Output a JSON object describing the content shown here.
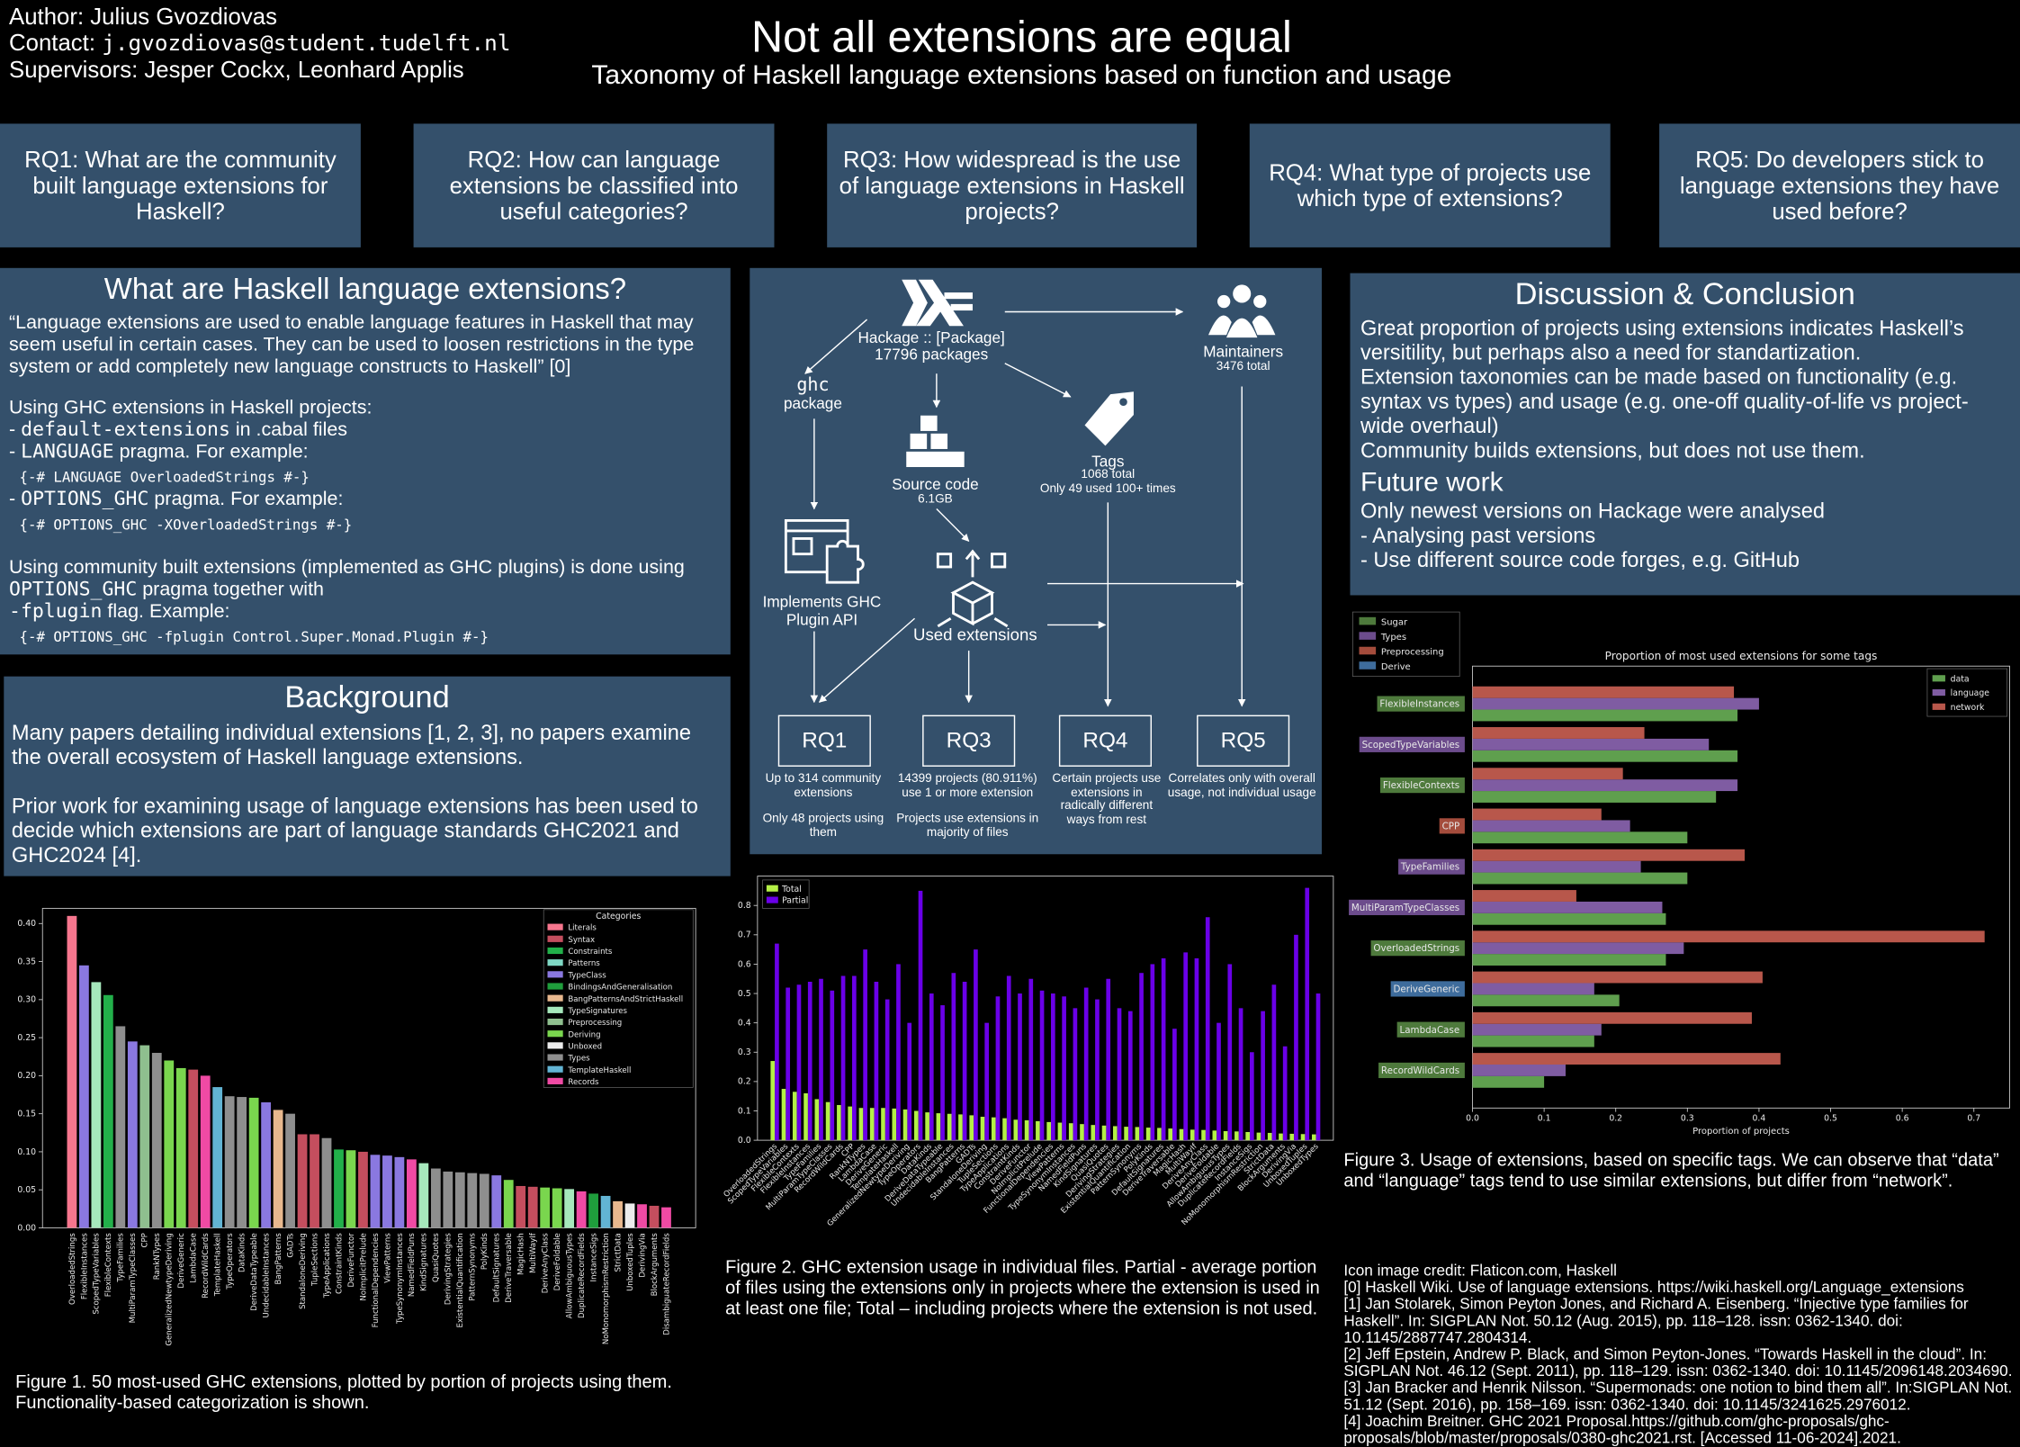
{
  "header": {
    "author": "Author: Julius Gvozdiovas",
    "contact_label": "Contact:",
    "contact": "j.gvozdiovas@student.tudelft.nl",
    "supervisors": "Supervisors: Jesper Cockx,  Leonhard Applis",
    "title": "Not all extensions are equal",
    "subtitle": "Taxonomy of Haskell language extensions based on function and usage"
  },
  "research_questions": [
    "RQ1: What are the community built language extensions for Haskell?",
    "RQ2: How can language extensions be classified into useful categories?",
    "RQ3: How widespread is the use of language extensions in Haskell projects?",
    "RQ4: What type of projects use which type of extensions?",
    "RQ5: Do developers stick to language extensions they have used before?"
  ],
  "intro": {
    "title": "What are Haskell language extensions?",
    "quote": "“Language extensions are used to enable language features in Haskell that may seem useful in certain cases. They can be used to loosen restrictions in the type system or add completely new language constructs to Haskell” [0]",
    "usage_heading": "Using GHC extensions in Haskell projects:",
    "items": [
      {
        "dash": "- ",
        "code": "default-extensions",
        "text": " in .cabal files"
      },
      {
        "dash": "- ",
        "code": "LANGUAGE",
        "text": " pragma. For example:",
        "example": "{-# LANGUAGE OverloadedStrings #-}"
      },
      {
        "dash": "- ",
        "code": "OPTIONS_GHC",
        "text": " pragma. For example:",
        "example": "{-# OPTIONS_GHC -XOverloadedStrings #-}"
      }
    ],
    "plugins": {
      "text1": "Using community built extensions (implemented as GHC plugins) is done using",
      "code1": "OPTIONS_GHC",
      "text2": " pragma together with",
      "code2": "-fplugin",
      "text3": " flag. Example:",
      "example": "{-# OPTIONS_GHC -fplugin Control.Super.Monad.Plugin #-}"
    }
  },
  "background": {
    "title": "Background",
    "paragraphs": [
      "Many papers detailing individual extensions [1, 2, 3], no papers examine the overall ecosystem of Haskell language extensions.",
      "Prior work for examining usage of language extensions has been used to decide which extensions are part of language standards GHC2021 and GHC2024 [4]."
    ]
  },
  "diagram": {
    "hackage": {
      "label": "Hackage :: [Package]",
      "sub": "17796 packages"
    },
    "maintainers": {
      "label": "Maintainers",
      "sub": "3476 total"
    },
    "ghc": {
      "label": "ghc",
      "sub": "package"
    },
    "source": {
      "label": "Source code",
      "sub": "6.1GB"
    },
    "tags": {
      "label": "Tags",
      "sub1": "1068 total",
      "sub2": "Only 49 used 100+ times"
    },
    "plugin": {
      "label": "Implements GHC Plugin API"
    },
    "used": {
      "label": "Used extensions"
    },
    "rqs": [
      {
        "label": "RQ1",
        "notes": [
          "Up to 314 community extensions",
          "Only 48 projects using them"
        ]
      },
      {
        "label": "RQ3",
        "notes": [
          "14399 projects (80.911%) use 1 or more extension",
          "Projects use extensions in majority of files"
        ]
      },
      {
        "label": "RQ4",
        "notes": [
          "Certain projects use extensions in radically different ways from rest"
        ]
      },
      {
        "label": "RQ5",
        "notes": [
          "Correlates only with overall usage, not individual usage"
        ]
      }
    ]
  },
  "discussion": {
    "title": "Discussion & Conclusion",
    "paragraphs": [
      "Great proportion of projects using extensions indicates Haskell’s versitility, but perhaps also a need for standartization.",
      "Extension taxonomies can be made based on functionality (e.g. syntax vs types) and usage (e.g. one-off quality-of-life vs project-wide overhaul)",
      "Community builds extensions, but does not use them."
    ],
    "future_title": "Future work",
    "future": [
      "Only newest versions on Hackage were analysed",
      "- Analysing past versions",
      "- Use different source code forges, e.g. GitHub"
    ]
  },
  "references": [
    "Icon image credit: Flaticon.com, Haskell",
    "[0] Haskell Wiki. Use of language extensions. https://wiki.haskell.org/Language_extensions",
    "[1] Jan Stolarek, Simon Peyton Jones, and Richard A. Eisenberg. “Injective type families for Haskell”. In: SIGPLAN Not. 50.12 (Aug. 2015), pp. 118–128. issn: 0362-1340. doi: 10.1145/2887747.2804314.",
    "[2] Jeff Epstein, Andrew P. Black, and Simon Peyton-Jones. “Towards Haskell in the cloud”. In: SIGPLAN Not. 46.12 (Sept. 2011), pp. 118–129. issn: 0362-1340. doi: 10.1145/2096148.2034690.",
    "[3] Jan Bracker and Henrik Nilsson. “Supermonads: one notion to bind them all”. In:SIGPLAN Not. 51.12 (Sept. 2016), pp. 158–169. issn: 0362-1340. doi: 10.1145/3241625.2976012.",
    "[4] Joachim Breitner. GHC 2021 Proposal.https://github.com/ghc-proposals/ghc-proposals/blob/master/proposals/0380-ghc2021.rst. [Accessed 11-06-2024].2021."
  ],
  "chart_data": [
    {
      "type": "bar",
      "caption": "Figure 1. 50 most-used GHC extensions, plotted by portion of projects using them. Functionality-based categorization is shown.",
      "categories": [
        "OverloadedStrings",
        "FlexibleInstances",
        "ScopedTypeVariables",
        "FlexibleContexts",
        "TypeFamilies",
        "MultiParamTypeClasses",
        "CPP",
        "RankNTypes",
        "GeneralizedNewtypeDeriving",
        "DeriveGeneric",
        "LambdaCase",
        "RecordWildCards",
        "TemplateHaskell",
        "TypeOperators",
        "DataKinds",
        "DeriveDataTypeable",
        "UndecidableInstances",
        "BangPatterns",
        "GADTs",
        "StandaloneDeriving",
        "TupleSections",
        "TypeApplications",
        "ConstraintKinds",
        "DeriveFunctor",
        "NoImplicitPrelude",
        "FunctionalDependencies",
        "ViewPatterns",
        "TypeSynonymInstances",
        "NamedFieldPuns",
        "KindSignatures",
        "QuasiQuotes",
        "DerivingStrategies",
        "ExistentialQuantification",
        "PatternSynonyms",
        "PolyKinds",
        "DefaultSignatures",
        "DeriveTraversable",
        "MagicHash",
        "MultiWayIf",
        "DeriveAnyClass",
        "DeriveFoldable",
        "AllowAmbiguousTypes",
        "DuplicateRecordFields",
        "InstanceSigs",
        "NoMonomorphismRestriction",
        "StrictData",
        "UnboxedTuples",
        "DerivingVia",
        "BlockArguments",
        "DisambiguateRecordFields"
      ],
      "values": [
        0.41,
        0.345,
        0.323,
        0.306,
        0.265,
        0.245,
        0.24,
        0.23,
        0.22,
        0.21,
        0.208,
        0.2,
        0.185,
        0.173,
        0.172,
        0.171,
        0.165,
        0.155,
        0.15,
        0.123,
        0.123,
        0.118,
        0.103,
        0.102,
        0.1,
        0.096,
        0.095,
        0.093,
        0.09,
        0.085,
        0.078,
        0.074,
        0.073,
        0.072,
        0.071,
        0.069,
        0.063,
        0.055,
        0.054,
        0.053,
        0.052,
        0.051,
        0.048,
        0.045,
        0.042,
        0.035,
        0.032,
        0.031,
        0.029,
        0.027
      ],
      "bar_category": [
        0,
        4,
        7,
        2,
        11,
        4,
        8,
        11,
        9,
        9,
        1,
        13,
        12,
        11,
        11,
        9,
        4,
        6,
        11,
        1,
        1,
        11,
        2,
        9,
        1,
        4,
        4,
        4,
        13,
        7,
        11,
        11,
        11,
        11,
        11,
        4,
        9,
        1,
        1,
        9,
        9,
        7,
        13,
        5,
        12,
        6,
        10,
        13,
        1,
        13
      ],
      "legend_title": "Categories",
      "legend": "upper right",
      "legend_entries": [
        {
          "name": "Literals",
          "color": "#f7768e"
        },
        {
          "name": "Syntax",
          "color": "#c44e5e"
        },
        {
          "name": "Constraints",
          "color": "#22b04a"
        },
        {
          "name": "Patterns",
          "color": "#7fd8c4"
        },
        {
          "name": "TypeClass",
          "color": "#8a78e0"
        },
        {
          "name": "BindingsAndGeneralisation",
          "color": "#1f9e3c"
        },
        {
          "name": "BangPatternsAndStrictHaskell",
          "color": "#e8b88e"
        },
        {
          "name": "TypeSignatures",
          "color": "#a6e8bc"
        },
        {
          "name": "Preprocessing",
          "color": "#8fbf8f"
        },
        {
          "name": "Deriving",
          "color": "#7ad64e"
        },
        {
          "name": "Unboxed",
          "color": "#ececec"
        },
        {
          "name": "Types",
          "color": "#8e8e8e"
        },
        {
          "name": "TemplateHaskell",
          "color": "#62b4d4"
        },
        {
          "name": "Records",
          "color": "#f04aa4"
        }
      ],
      "ylim": [
        0,
        0.42
      ],
      "yticks": [
        {
          "value": 0,
          "label": "0.00"
        },
        {
          "value": 0.05,
          "label": "0.05"
        },
        {
          "value": 0.1,
          "label": "0.10"
        },
        {
          "value": 0.15,
          "label": "0.15"
        },
        {
          "value": 0.2,
          "label": "0.20"
        },
        {
          "value": 0.25,
          "label": "0.25"
        },
        {
          "value": 0.3,
          "label": "0.30"
        },
        {
          "value": 0.35,
          "label": "0.35"
        },
        {
          "value": 0.4,
          "label": "0.40"
        }
      ]
    },
    {
      "type": "grouped-bar",
      "caption": "Figure 2. GHC extension usage in individual files. Partial - average portion of files using the extensions only in projects where the extension is used in at least one file; Total – including projects where the extension is not used.",
      "categories": [
        "OverloadedStrings",
        "ScopedTypeVariables",
        "FlexibleContexts",
        "FlexibleInstances",
        "TypeFamilies",
        "MultiParamTypeClasses",
        "RecordWildCards",
        "CPP",
        "RankNTypes",
        "LambdaCase",
        "DeriveGeneric",
        "TemplateHaskell",
        "GeneralizedNewtypeDeriving",
        "TypeOperators",
        "DataKinds",
        "DeriveDataTypeable",
        "UndecidableInstances",
        "BangPatterns",
        "GADTs",
        "StandaloneDeriving",
        "TupleSections",
        "TypeApplications",
        "ConstraintKinds",
        "DeriveFunctor",
        "NoImplicitPrelude",
        "FunctionalDependencies",
        "ViewPatterns",
        "TypeSynonymInstances",
        "NamedFieldPuns",
        "KindSignatures",
        "QuasiQuotes",
        "DerivingStrategies",
        "ExistentialQuantification",
        "PatternSynonyms",
        "PolyKinds",
        "DefaultSignatures",
        "DeriveTraversable",
        "MagicHash",
        "MultiWayIf",
        "DeriveAnyClass",
        "DeriveFoldable",
        "AllowAmbiguousTypes",
        "DuplicateRecordFields",
        "InstanceSigs",
        "NoMonomorphismRestriction",
        "StrictData",
        "BlockArguments",
        "DerivingVia",
        "UnboxedTuples",
        "UnboxedTypes"
      ],
      "series": [
        {
          "name": "Total",
          "color": "#b4f046",
          "values": [
            0.27,
            0.175,
            0.165,
            0.16,
            0.14,
            0.13,
            0.12,
            0.115,
            0.11,
            0.11,
            0.11,
            0.108,
            0.105,
            0.1,
            0.095,
            0.092,
            0.09,
            0.088,
            0.085,
            0.08,
            0.078,
            0.075,
            0.07,
            0.068,
            0.065,
            0.062,
            0.06,
            0.058,
            0.055,
            0.052,
            0.05,
            0.048,
            0.046,
            0.045,
            0.043,
            0.042,
            0.04,
            0.038,
            0.036,
            0.035,
            0.033,
            0.031,
            0.03,
            0.028,
            0.026,
            0.025,
            0.023,
            0.022,
            0.021,
            0.02
          ]
        },
        {
          "name": "Partial",
          "color": "#6a00e8",
          "values": [
            0.67,
            0.52,
            0.53,
            0.54,
            0.55,
            0.51,
            0.56,
            0.56,
            0.65,
            0.54,
            0.48,
            0.6,
            0.4,
            0.85,
            0.5,
            0.46,
            0.57,
            0.54,
            0.65,
            0.4,
            0.49,
            0.56,
            0.5,
            0.55,
            0.51,
            0.5,
            0.49,
            0.45,
            0.52,
            0.48,
            0.55,
            0.45,
            0.44,
            0.57,
            0.6,
            0.62,
            0.38,
            0.64,
            0.62,
            0.76,
            0.4,
            0.6,
            0.45,
            0.3,
            0.44,
            0.53,
            0.32,
            0.7,
            0.86,
            0.5
          ]
        }
      ],
      "legend": "upper left",
      "ylim": [
        0,
        0.9
      ],
      "yticks": [
        {
          "value": 0,
          "label": "0.0"
        },
        0.1,
        0.2,
        0.3,
        0.4,
        0.5,
        0.6,
        0.7,
        0.8
      ]
    },
    {
      "type": "barh",
      "title": "Proportion of most used extensions for some tags",
      "xlabel": "Proportion of projects",
      "caption": "Figure 3. Usage of extensions, based on specific tags. We can observe that “data” and “language” tags tend to use similar extensions, but differ from “network”.",
      "categories": [
        "FlexibleInstances",
        "ScopedTypeVariables",
        "FlexibleContexts",
        "CPP",
        "TypeFamilies",
        "MultiParamTypeClasses",
        "OverloadedStrings",
        "DeriveGeneric",
        "LambdaCase",
        "RecordWildCards"
      ],
      "category_tag": [
        0,
        1,
        0,
        2,
        1,
        1,
        0,
        3,
        0,
        0
      ],
      "tag_legend": [
        {
          "name": "Sugar",
          "color": "#4e7a3c"
        },
        {
          "name": "Types",
          "color": "#6c4c8c"
        },
        {
          "name": "Preprocessing",
          "color": "#a44c3c"
        },
        {
          "name": "Derive",
          "color": "#3e6c9c"
        }
      ],
      "series": [
        {
          "name": "data",
          "color": "#5f9f4e",
          "values": [
            0.37,
            0.37,
            0.34,
            0.3,
            0.3,
            0.27,
            0.27,
            0.205,
            0.17,
            0.1
          ]
        },
        {
          "name": "language",
          "color": "#7f5ca2",
          "values": [
            0.4,
            0.33,
            0.37,
            0.22,
            0.235,
            0.265,
            0.295,
            0.17,
            0.18,
            0.13
          ]
        },
        {
          "name": "network",
          "color": "#b8574b",
          "values": [
            0.365,
            0.24,
            0.21,
            0.18,
            0.38,
            0.145,
            0.715,
            0.405,
            0.39,
            0.43
          ]
        }
      ],
      "legend": "upper right",
      "xlim": [
        0,
        0.75
      ],
      "xticks": [
        {
          "value": 0,
          "label": "0.0"
        },
        0.1,
        0.2,
        0.3,
        0.4,
        0.5,
        0.6,
        0.7
      ]
    }
  ]
}
